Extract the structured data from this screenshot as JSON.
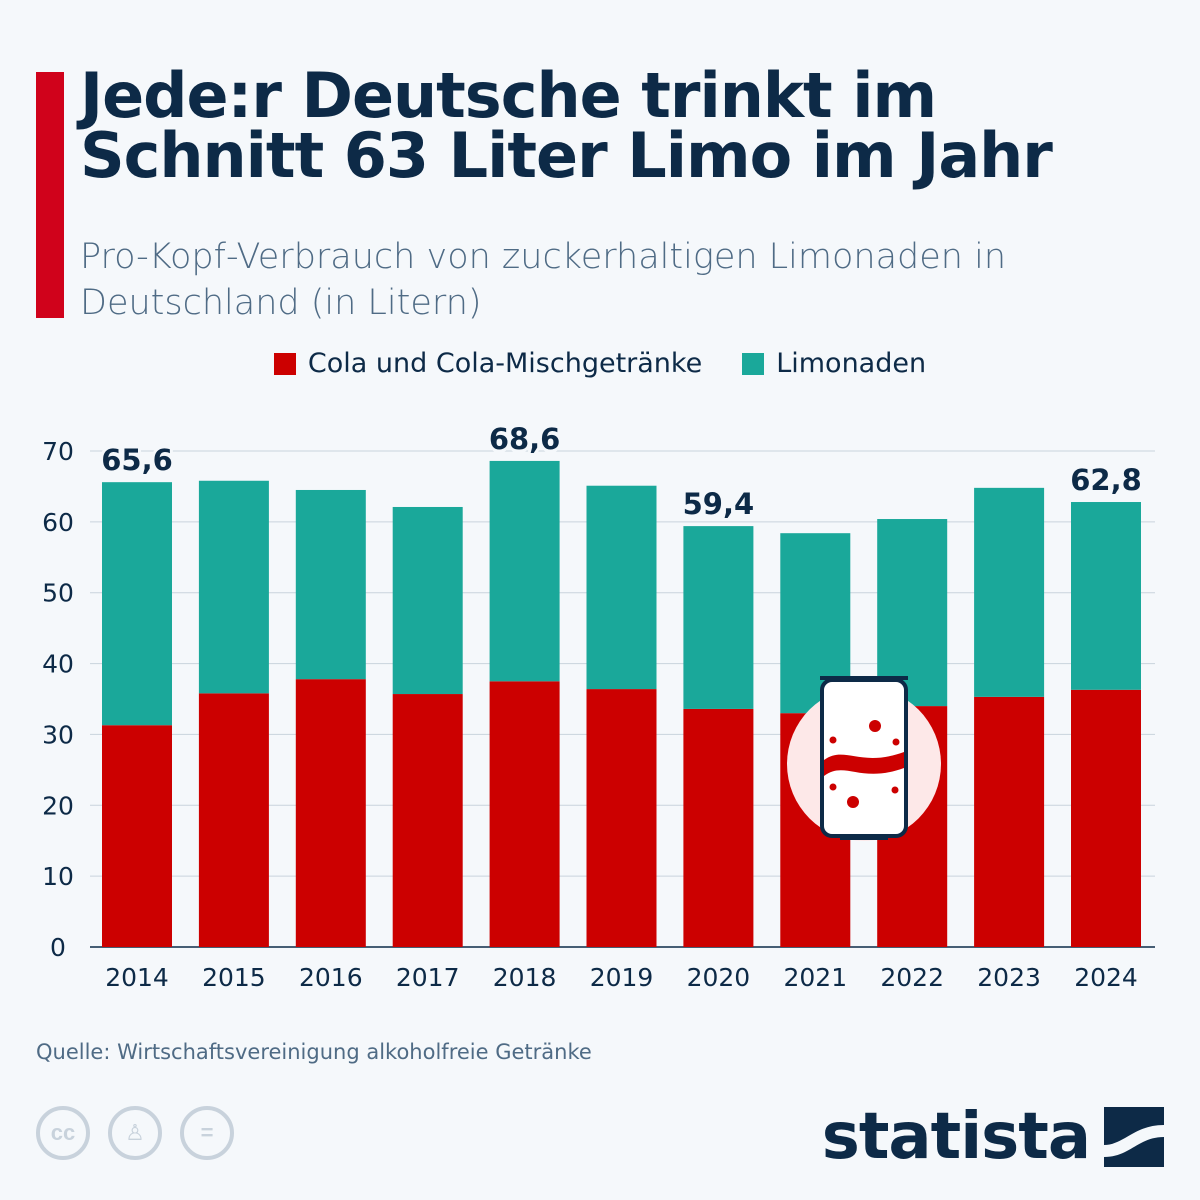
{
  "title": "Jede:r Deutsche trinkt im Schnitt 63 Liter Limo im Jahr",
  "subtitle": "Pro-Kopf-Verbrauch von zuckerhaltigen Limonaden in Deutschland (in Litern)",
  "source": "Quelle: Wirtschaftsvereinigung alkoholfreie Getränke",
  "brand": "statista",
  "license_icons": [
    "cc-icon",
    "attribution-icon",
    "no-derivatives-icon"
  ],
  "colors": {
    "cola": "#cc0000",
    "limonaden": "#1aa89a",
    "text": "#0d2a47",
    "accent": "#d0021b"
  },
  "chart_data": {
    "type": "bar",
    "stacked": true,
    "categories": [
      "2014",
      "2015",
      "2016",
      "2017",
      "2018",
      "2019",
      "2020",
      "2021",
      "2022",
      "2023",
      "2024"
    ],
    "series": [
      {
        "name": "Cola und Cola-Mischgetränke",
        "values": [
          31.3,
          35.8,
          37.8,
          35.7,
          37.5,
          36.4,
          33.6,
          33.0,
          34.0,
          35.3,
          36.3
        ]
      },
      {
        "name": "Limonaden",
        "values": [
          34.3,
          30.0,
          26.7,
          26.4,
          31.1,
          28.7,
          25.8,
          25.4,
          26.4,
          29.5,
          26.5
        ]
      }
    ],
    "data_labels": {
      "2014": "65,6",
      "2018": "68,6",
      "2020": "59,4",
      "2024": "62,8"
    },
    "yticks": [
      0,
      10,
      20,
      30,
      40,
      50,
      60,
      70
    ],
    "ylim": [
      0,
      70
    ],
    "grid": true,
    "legend_position": "top"
  }
}
